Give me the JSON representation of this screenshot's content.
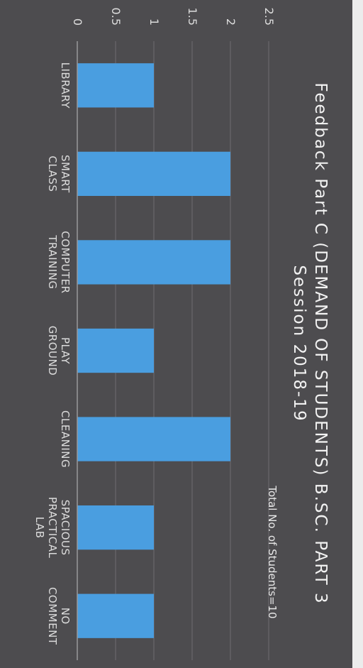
{
  "chart_data": {
    "type": "bar",
    "title": [
      "Feedback Part C (DEMAND OF STUDENTS) B.SC. PART 3",
      "Session 2018-19"
    ],
    "subtitle": "Total No. of Students=10",
    "categories": [
      [
        "LIBRARY"
      ],
      [
        "SMART",
        "CLASS"
      ],
      [
        "COMPUTER",
        "TRAINING"
      ],
      [
        "PLAY",
        "GROUND"
      ],
      [
        "CLEANING"
      ],
      [
        "SPACIOUS",
        "PRACTICAL",
        "LAB"
      ],
      [
        "NO",
        "COMMENT"
      ]
    ],
    "values": [
      1,
      2,
      2,
      1,
      2,
      1,
      1
    ],
    "yticks": [
      "0",
      "0.5",
      "1",
      "1.5",
      "2",
      "2.5"
    ],
    "ylim": [
      0,
      2.5
    ],
    "grid": true,
    "legend": "none",
    "colors": {
      "bar": "#4a9ee0",
      "background": "#4d4c4f",
      "grid": "#6e6d70",
      "axis": "#9a999c",
      "text": "#dcdcdc"
    }
  }
}
